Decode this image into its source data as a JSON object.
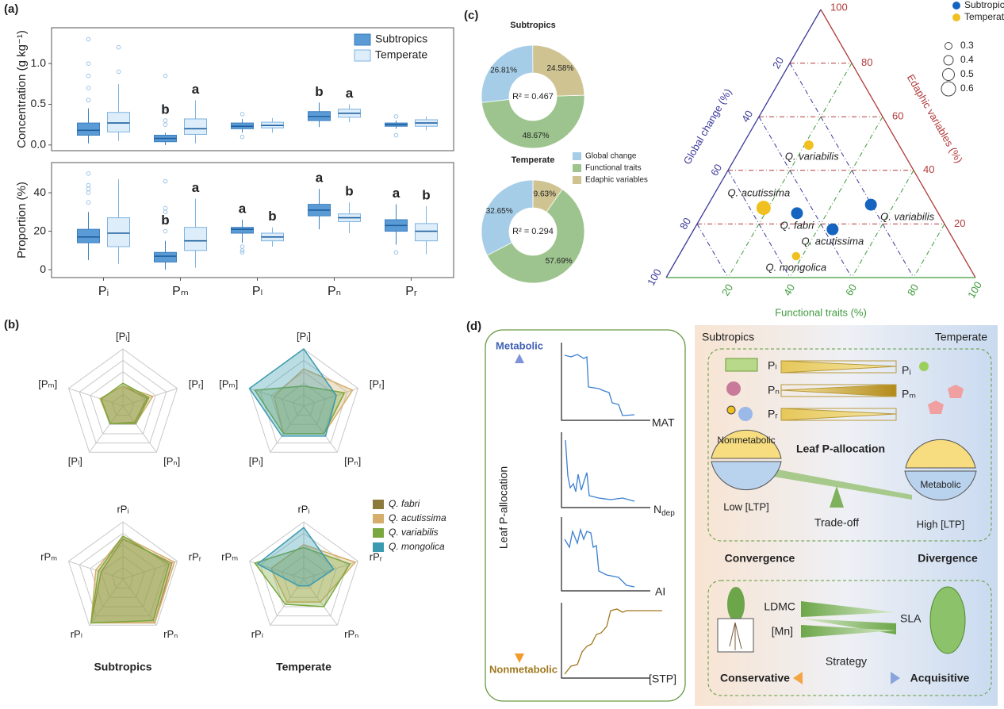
{
  "panel_labels": [
    "(a)",
    "(b)",
    "(c)",
    "(d)"
  ],
  "chart_data": [
    {
      "type": "box",
      "ylabel": "Concentration (g kg⁻¹)",
      "ylim": [
        -0.07,
        1.44
      ],
      "yticks": [
        {
          "value": 0,
          "label": "0.0"
        },
        {
          "value": 0.5,
          "label": "0.5"
        },
        {
          "value": 1,
          "label": "1.0"
        }
      ],
      "legend": "top-right",
      "series": [
        {
          "name": "Subtropics",
          "color": "#5b9bd5",
          "letters": [
            null,
            "b",
            null,
            "b",
            null
          ],
          "values": [
            {
              "min": 0.02,
              "q1": 0.12,
              "median": 0.18,
              "q3": 0.27,
              "max": 0.45,
              "outliers": [
                0.55,
                0.7,
                0.85,
                1.0,
                1.3
              ]
            },
            {
              "min": 0.0,
              "q1": 0.04,
              "median": 0.08,
              "q3": 0.12,
              "max": 0.15,
              "outliers": [
                0.25,
                0.3,
                0.45,
                0.85
              ]
            },
            {
              "min": 0.15,
              "q1": 0.2,
              "median": 0.23,
              "q3": 0.27,
              "max": 0.32,
              "outliers": [
                0.1,
                0.38
              ]
            },
            {
              "min": 0.22,
              "q1": 0.3,
              "median": 0.35,
              "q3": 0.41,
              "max": 0.52,
              "outliers": []
            },
            {
              "min": 0.2,
              "q1": 0.23,
              "median": 0.25,
              "q3": 0.27,
              "max": 0.3,
              "outliers": [
                0.12,
                0.35
              ]
            }
          ]
        },
        {
          "name": "Temperate",
          "color": "#ddeefa",
          "letters": [
            null,
            "a",
            null,
            "a",
            null
          ],
          "values": [
            {
              "min": 0.05,
              "q1": 0.16,
              "median": 0.27,
              "q3": 0.4,
              "max": 0.75,
              "outliers": [
                0.9,
                1.2
              ]
            },
            {
              "min": 0.02,
              "q1": 0.13,
              "median": 0.2,
              "q3": 0.32,
              "max": 0.55,
              "outliers": []
            },
            {
              "min": 0.15,
              "q1": 0.21,
              "median": 0.24,
              "q3": 0.28,
              "max": 0.33,
              "outliers": []
            },
            {
              "min": 0.28,
              "q1": 0.34,
              "median": 0.39,
              "q3": 0.44,
              "max": 0.5,
              "outliers": []
            },
            {
              "min": 0.18,
              "q1": 0.23,
              "median": 0.27,
              "q3": 0.31,
              "max": 0.35,
              "outliers": []
            }
          ]
        }
      ]
    },
    {
      "type": "box",
      "ylabel": "Proportion (%)",
      "ylim": [
        -4.1,
        55.7
      ],
      "yticks": [
        0,
        20,
        40
      ],
      "categories": [
        "Pᵢ",
        "Pₘ",
        "Pₗ",
        "Pₙ",
        "Pᵣ"
      ],
      "series": [
        {
          "color": "#5b9bd5",
          "letters": [
            null,
            "b",
            "a",
            "a",
            "a"
          ],
          "values": [
            {
              "min": 5,
              "q1": 14,
              "median": 17,
              "q3": 21,
              "max": 30,
              "outliers": [
                35,
                40,
                42,
                44,
                50
              ]
            },
            {
              "min": 0,
              "q1": 4,
              "median": 7,
              "q3": 9,
              "max": 15,
              "outliers": [
                20,
                25,
                30,
                32,
                46
              ]
            },
            {
              "min": 14,
              "q1": 19,
              "median": 21,
              "q3": 22,
              "max": 26,
              "outliers": [
                9,
                10,
                12
              ]
            },
            {
              "min": 21,
              "q1": 28,
              "median": 31,
              "q3": 34,
              "max": 42,
              "outliers": []
            },
            {
              "min": 13,
              "q1": 20,
              "median": 23,
              "q3": 26,
              "max": 34,
              "outliers": [
                9
              ]
            }
          ]
        },
        {
          "color": "#ddeefa",
          "letters": [
            null,
            "a",
            "b",
            "b",
            "b"
          ],
          "values": [
            {
              "min": 3,
              "q1": 12,
              "median": 19,
              "q3": 27,
              "max": 47,
              "outliers": []
            },
            {
              "min": 1,
              "q1": 10,
              "median": 15,
              "q3": 22,
              "max": 37,
              "outliers": []
            },
            {
              "min": 12,
              "q1": 15,
              "median": 17,
              "q3": 19,
              "max": 22,
              "outliers": []
            },
            {
              "min": 19,
              "q1": 25,
              "median": 27,
              "q3": 29,
              "max": 35,
              "outliers": []
            },
            {
              "min": 8,
              "q1": 15,
              "median": 20,
              "q3": 24,
              "max": 33,
              "outliers": []
            }
          ]
        }
      ]
    },
    {
      "type": "radar",
      "rlim": [
        0,
        1
      ],
      "grid_rings": 5,
      "series": [
        {
          "name": "Q. fabri",
          "color": "#8b7a3a"
        },
        {
          "name": "Q. acutissima",
          "color": "#d4ae6a"
        },
        {
          "name": "Q. variabilis",
          "color": "#7aa83e"
        },
        {
          "name": "Q. mongolica",
          "color": "#3a9ab0"
        }
      ],
      "panels": [
        {
          "axes": [
            "[Pᵢ]",
            "[Pᵣ]",
            "[Pₙ]",
            "[Pₗ]",
            "[Pₘ]"
          ],
          "values": [
            [
              0.35,
              0.45,
              0.35,
              0.38,
              0.42
            ],
            [
              0.35,
              0.55,
              0.38,
              0.38,
              0.42
            ],
            [
              0.4,
              0.48,
              0.38,
              0.38,
              0.4
            ],
            null
          ]
        },
        {
          "axes": [
            "[Pᵢ]",
            "[Pᵣ]",
            "[Pₙ]",
            "[Pₗ]",
            "[Pₘ]"
          ],
          "values": [
            null,
            [
              0.65,
              0.9,
              0.6,
              0.6,
              0.55
            ],
            [
              0.35,
              0.75,
              0.6,
              0.6,
              0.9
            ],
            [
              1.0,
              0.6,
              0.65,
              0.65,
              1.0
            ]
          ]
        },
        {
          "axes": [
            "rPᵢ",
            "rPᵣ",
            "rPₙ",
            "rPₗ",
            "rPₘ"
          ],
          "title": "Subtropics",
          "values": [
            [
              0.7,
              0.9,
              0.95,
              0.95,
              0.4
            ],
            [
              0.75,
              0.95,
              0.95,
              0.95,
              0.5
            ],
            [
              0.75,
              0.85,
              0.9,
              0.95,
              0.45
            ],
            null
          ]
        },
        {
          "axes": [
            "rPᵢ",
            "rPᵣ",
            "rPₙ",
            "rPₗ",
            "rPₘ"
          ],
          "title": "Temperate",
          "values": [
            null,
            [
              0.6,
              0.95,
              0.5,
              0.5,
              0.6
            ],
            [
              0.55,
              0.85,
              0.6,
              0.55,
              0.9
            ],
            [
              0.9,
              0.55,
              0.15,
              0.15,
              0.85
            ]
          ]
        }
      ]
    },
    {
      "type": "donut",
      "title": "Subtropics",
      "annotation": "R² = 0.467",
      "categories": [
        "Global change",
        "Functional traits",
        "Edaphic variables"
      ],
      "colors": [
        "#a6cde8",
        "#9dc48e",
        "#cfc391"
      ],
      "values": [
        26.81,
        48.67,
        24.58
      ],
      "value_labels": [
        "26.81%",
        "48.67%",
        "24.58%"
      ]
    },
    {
      "type": "donut",
      "title": "Temperate",
      "annotation": "R² = 0.294",
      "values": [
        32.65,
        57.69,
        9.63
      ],
      "value_labels": [
        "32.65%",
        "57.69%",
        "9.63%"
      ]
    },
    {
      "type": "ternary",
      "axes": {
        "global": {
          "label": "Global change (%)",
          "ticks": [
            20,
            40,
            60,
            80,
            100
          ],
          "color": "#3c3a9a"
        },
        "functional": {
          "label": "Functional traits (%)",
          "ticks": [
            20,
            40,
            60,
            80,
            100
          ],
          "color": "#3f9a3c"
        },
        "edaphic": {
          "label": "Edaphic variables (%)",
          "ticks": [
            20,
            40,
            60,
            80,
            100
          ],
          "color": "#b03a3a"
        }
      },
      "series": [
        {
          "name": "Subtropics",
          "color": "#1565c0",
          "points": [
            {
              "label": "Q. fabri",
              "global": 45.7,
              "functional": 30.3,
              "edaphic": 24,
              "size": 0.5
            },
            {
              "label": "Q. acutissima",
              "global": 37.2,
              "functional": 44.8,
              "edaphic": 18,
              "size": 0.5
            },
            {
              "label": "Q. variabilis",
              "global": 20.2,
              "functional": 52.6,
              "edaphic": 27.2,
              "size": 0.5
            }
          ]
        },
        {
          "name": "Temperate",
          "color": "#f0c020",
          "points": [
            {
              "label": "Q. acutissima",
              "global": 55.5,
              "functional": 18.5,
              "edaphic": 26,
              "size": 0.6
            },
            {
              "label": "Q. variabilis",
              "global": 29.2,
              "functional": 21.4,
              "edaphic": 49.4,
              "size": 0.4
            },
            {
              "label": "Q. mongolica",
              "global": 54,
              "functional": 38,
              "edaphic": 8,
              "size": 0.35
            }
          ]
        }
      ],
      "size_legend": [
        0.3,
        0.4,
        0.5,
        0.6
      ]
    }
  ],
  "diagram": {
    "left_panel": {
      "top": "Metabolic",
      "axis": "Leaf P-allocation",
      "bottom": "Nonmetabolic",
      "plots": [
        "MAT",
        {
          "text": "N",
          "sub": "dep"
        },
        "AI",
        "[STP]"
      ]
    },
    "right_panel": {
      "regions": [
        "Subtropics",
        "Temperate"
      ],
      "fractions_left": [
        "Pₗ",
        "Pₙ",
        "Pᵣ"
      ],
      "fractions_right": [
        "Pᵢ",
        "Pₘ"
      ],
      "title": "Leaf P-allocation",
      "pools": [
        "Nonmetabolic",
        "Metabolic"
      ],
      "levels": [
        "Low [LTP]",
        "High [LTP]"
      ],
      "balance": "Trade-off",
      "patterns": [
        "Convergence",
        "Divergence"
      ],
      "traits_left": [
        "LDMC",
        "[Mn]"
      ],
      "traits_right": "SLA",
      "strategy": "Strategy",
      "strategies": [
        "Conservative",
        "Acquisitive"
      ]
    }
  }
}
